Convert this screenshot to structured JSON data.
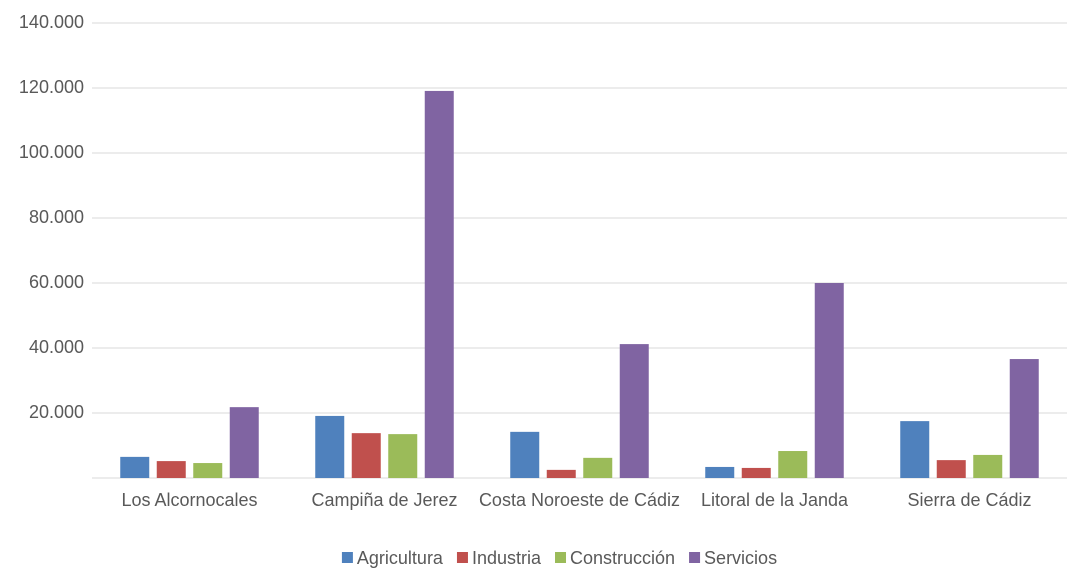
{
  "chart_data": {
    "type": "bar",
    "categories": [
      "Los Alcornocales",
      "Campiña de Jerez",
      "Costa Noroeste de Cádiz",
      "Litoral de la Janda",
      "Sierra de Cádiz"
    ],
    "series": [
      {
        "name": "Agricultura",
        "color": "#4f81bd",
        "values": [
          6500,
          19100,
          14200,
          3400,
          17500
        ]
      },
      {
        "name": "Industria",
        "color": "#c0504d",
        "values": [
          5200,
          13800,
          2500,
          3100,
          5500
        ]
      },
      {
        "name": "Construcción",
        "color": "#9bbb59",
        "values": [
          4600,
          13500,
          6200,
          8300,
          7100
        ]
      },
      {
        "name": "Servicios",
        "color": "#8064a2",
        "values": [
          21800,
          119100,
          41200,
          60000,
          36600
        ]
      }
    ],
    "ylim": [
      0,
      140000
    ],
    "yticks": [
      {
        "value": 20000,
        "label": "20.000"
      },
      {
        "value": 40000,
        "label": "40.000"
      },
      {
        "value": 60000,
        "label": "60.000"
      },
      {
        "value": 80000,
        "label": "80.000"
      },
      {
        "value": 100000,
        "label": "100.000"
      },
      {
        "value": 120000,
        "label": "120.000"
      },
      {
        "value": 140000,
        "label": "140.000"
      }
    ],
    "grid": true,
    "legend": "bottom"
  }
}
